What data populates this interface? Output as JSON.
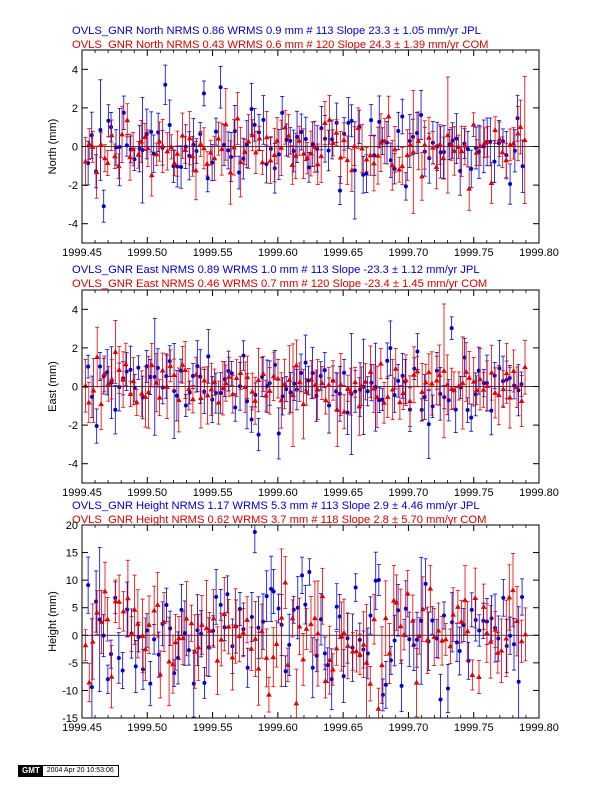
{
  "chart_data": [
    {
      "type": "scatter",
      "component": "North",
      "ylabel": "North (mm)",
      "xlabel": "",
      "xlim": [
        1999.45,
        1999.8
      ],
      "ylim": [
        -5,
        5
      ],
      "xticks": [
        "1999.45",
        "1999.50",
        "1999.55",
        "1999.60",
        "1999.65",
        "1999.70",
        "1999.75",
        "1999.80"
      ],
      "yticks": [
        "-4",
        "-2",
        "0",
        "2",
        "4"
      ],
      "legend": [
        {
          "text": "OVLS_GNR North NRMS 0.86 WRMS  0.9 mm # 113 Slope   23.3 ±  1.05 mm/yr JPL",
          "color": "#0000cc"
        },
        {
          "text": "OVLS_GNR North NRMS 0.43 WRMS  0.6 mm # 120 Slope   24.3 ±  1.39 mm/yr COM",
          "color": "#dd0000"
        }
      ],
      "series": [
        {
          "name": "JPL",
          "marker": "circle",
          "color": "#0000cc",
          "count": 113,
          "x_start": 1999.455,
          "x_end": 1999.787,
          "slope_mm_per_yr": 23.3,
          "wrms": 0.9,
          "err_base": 0.95,
          "seed": 11
        },
        {
          "name": "COM",
          "marker": "triangle",
          "color": "#dd0000",
          "count": 120,
          "x_start": 1999.453,
          "x_end": 1999.789,
          "slope_mm_per_yr": 24.3,
          "wrms": 0.6,
          "err_base": 1.05,
          "seed": 23
        }
      ]
    },
    {
      "type": "scatter",
      "component": "East",
      "ylabel": "East (mm)",
      "xlabel": "",
      "xlim": [
        1999.45,
        1999.8
      ],
      "ylim": [
        -5,
        5
      ],
      "xticks": [
        "1999.45",
        "1999.50",
        "1999.55",
        "1999.60",
        "1999.65",
        "1999.70",
        "1999.75",
        "1999.80"
      ],
      "yticks": [
        "-4",
        "-2",
        "0",
        "2",
        "4"
      ],
      "legend": [
        {
          "text": "OVLS_GNR East NRMS 0.89 WRMS  1.0 mm # 113 Slope  -23.3 ±  1.12 mm/yr JPL",
          "color": "#0000cc"
        },
        {
          "text": "OVLS_GNR East NRMS 0.46 WRMS  0.7 mm # 120 Slope  -23.4 ±  1.45 mm/yr COM",
          "color": "#dd0000"
        }
      ],
      "series": [
        {
          "name": "JPL",
          "marker": "circle",
          "color": "#0000cc",
          "count": 113,
          "x_start": 1999.455,
          "x_end": 1999.787,
          "slope_mm_per_yr": -23.3,
          "wrms": 1.0,
          "err_base": 1.0,
          "seed": 37
        },
        {
          "name": "COM",
          "marker": "triangle",
          "color": "#dd0000",
          "count": 120,
          "x_start": 1999.453,
          "x_end": 1999.789,
          "slope_mm_per_yr": -23.4,
          "wrms": 0.7,
          "err_base": 1.15,
          "seed": 41
        }
      ]
    },
    {
      "type": "scatter",
      "component": "Height",
      "ylabel": "Height (mm)",
      "xlabel": "",
      "xlim": [
        1999.45,
        1999.8
      ],
      "ylim": [
        -15,
        20
      ],
      "xticks": [
        "1999.45",
        "1999.50",
        "1999.55",
        "1999.60",
        "1999.65",
        "1999.70",
        "1999.75",
        "1999.80"
      ],
      "yticks": [
        "-15",
        "-10",
        "-5",
        "0",
        "5",
        "10",
        "15",
        "20"
      ],
      "legend": [
        {
          "text": "OVLS_GNR Height NRMS 1.17 WRMS  5.3 mm # 113 Slope    2.9 ±  4.46 mm/yr JPL",
          "color": "#0000cc"
        },
        {
          "text": "OVLS_GNR Height NRMS 0.62 WRMS  3.7 mm # 118 Slope    2.8 ±  5.70 mm/yr COM",
          "color": "#dd0000"
        }
      ],
      "series": [
        {
          "name": "JPL",
          "marker": "circle",
          "color": "#0000cc",
          "count": 113,
          "x_start": 1999.455,
          "x_end": 1999.787,
          "slope_mm_per_yr": 2.9,
          "wrms": 5.3,
          "err_base": 4.3,
          "seed": 53
        },
        {
          "name": "COM",
          "marker": "triangle",
          "color": "#dd0000",
          "count": 118,
          "x_start": 1999.453,
          "x_end": 1999.789,
          "slope_mm_per_yr": 2.8,
          "wrms": 3.7,
          "err_base": 4.8,
          "seed": 67
        }
      ]
    }
  ],
  "footer": {
    "logo": "GMT",
    "timestamp": "2004 Apr 20 10:53:06"
  }
}
